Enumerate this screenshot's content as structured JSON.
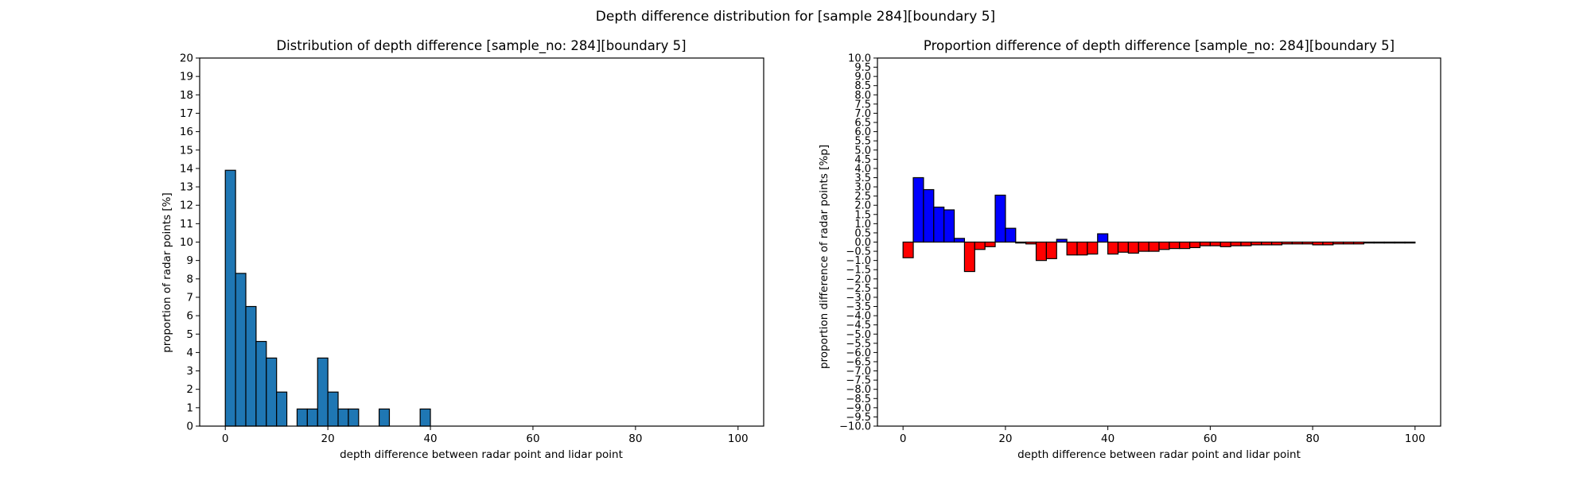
{
  "figure": {
    "suptitle": "Depth difference distribution for [sample 284][boundary 5]"
  },
  "chart_data": [
    {
      "type": "bar",
      "title": "Distribution of depth difference [sample_no: 284][boundary 5]",
      "xlabel": "depth difference between radar point and lidar point",
      "ylabel": "proportion of radar points [%]",
      "xlim": [
        -5,
        105
      ],
      "ylim": [
        0,
        20
      ],
      "xticks": [
        0,
        20,
        40,
        60,
        80,
        100
      ],
      "yticks": [
        0,
        1,
        2,
        3,
        4,
        5,
        6,
        7,
        8,
        9,
        10,
        11,
        12,
        13,
        14,
        15,
        16,
        17,
        18,
        19,
        20
      ],
      "bin_width": 2,
      "grid": false,
      "colors": {
        "positive": "#1f77b4",
        "edge": "#000000"
      },
      "bins": [
        0,
        2,
        4,
        6,
        8,
        10,
        12,
        14,
        16,
        18,
        20,
        22,
        24,
        26,
        28,
        30,
        32,
        34,
        36,
        38,
        40,
        42,
        44,
        46,
        48,
        50,
        52,
        54,
        56,
        58,
        60,
        62,
        64,
        66,
        68,
        70,
        72,
        74,
        76,
        78,
        80,
        82,
        84,
        86,
        88,
        90,
        92,
        94,
        96,
        98
      ],
      "values": [
        13.9,
        8.3,
        6.5,
        4.6,
        3.7,
        1.85,
        0,
        0.93,
        0.93,
        3.7,
        1.85,
        0.93,
        0.93,
        0,
        0,
        0.93,
        0,
        0,
        0,
        0.93,
        0,
        0,
        0,
        0,
        0,
        0,
        0,
        0,
        0,
        0,
        0,
        0,
        0,
        0,
        0,
        0,
        0,
        0,
        0,
        0,
        0,
        0,
        0,
        0,
        0,
        0,
        0,
        0,
        0,
        0
      ]
    },
    {
      "type": "bar",
      "title": "Proportion difference of depth difference [sample_no: 284][boundary 5]",
      "xlabel": "depth difference between radar point and lidar point",
      "ylabel": "proportion difference of radar points [%p]",
      "xlim": [
        -5,
        105
      ],
      "ylim": [
        -10,
        10
      ],
      "xticks": [
        0,
        20,
        40,
        60,
        80,
        100
      ],
      "yticks": [
        -10,
        -9.5,
        -9,
        -8.5,
        -8,
        -7.5,
        -7,
        -6.5,
        -6,
        -5.5,
        -5,
        -4.5,
        -4,
        -3.5,
        -3,
        -2.5,
        -2,
        -1.5,
        -1,
        -0.5,
        0,
        0.5,
        1,
        1.5,
        2,
        2.5,
        3,
        3.5,
        4,
        4.5,
        5,
        5.5,
        6,
        6.5,
        7,
        7.5,
        8,
        8.5,
        9,
        9.5,
        10
      ],
      "bin_width": 2,
      "grid": false,
      "colors": {
        "positive": "#0000ff",
        "negative": "#ff0000",
        "edge": "#000000"
      },
      "bins": [
        0,
        2,
        4,
        6,
        8,
        10,
        12,
        14,
        16,
        18,
        20,
        22,
        24,
        26,
        28,
        30,
        32,
        34,
        36,
        38,
        40,
        42,
        44,
        46,
        48,
        50,
        52,
        54,
        56,
        58,
        60,
        62,
        64,
        66,
        68,
        70,
        72,
        74,
        76,
        78,
        80,
        82,
        84,
        86,
        88,
        90,
        92,
        94,
        96,
        98
      ],
      "values": [
        -0.85,
        3.5,
        2.85,
        1.9,
        1.75,
        0.2,
        -1.6,
        -0.4,
        -0.25,
        2.55,
        0.75,
        -0.05,
        -0.1,
        -1.0,
        -0.9,
        0.15,
        -0.7,
        -0.7,
        -0.65,
        0.45,
        -0.65,
        -0.55,
        -0.6,
        -0.5,
        -0.5,
        -0.4,
        -0.35,
        -0.35,
        -0.3,
        -0.2,
        -0.2,
        -0.25,
        -0.2,
        -0.2,
        -0.15,
        -0.15,
        -0.15,
        -0.1,
        -0.1,
        -0.1,
        -0.15,
        -0.15,
        -0.1,
        -0.1,
        -0.1,
        -0.05,
        -0.05,
        -0.05,
        -0.05,
        -0.05
      ]
    }
  ]
}
